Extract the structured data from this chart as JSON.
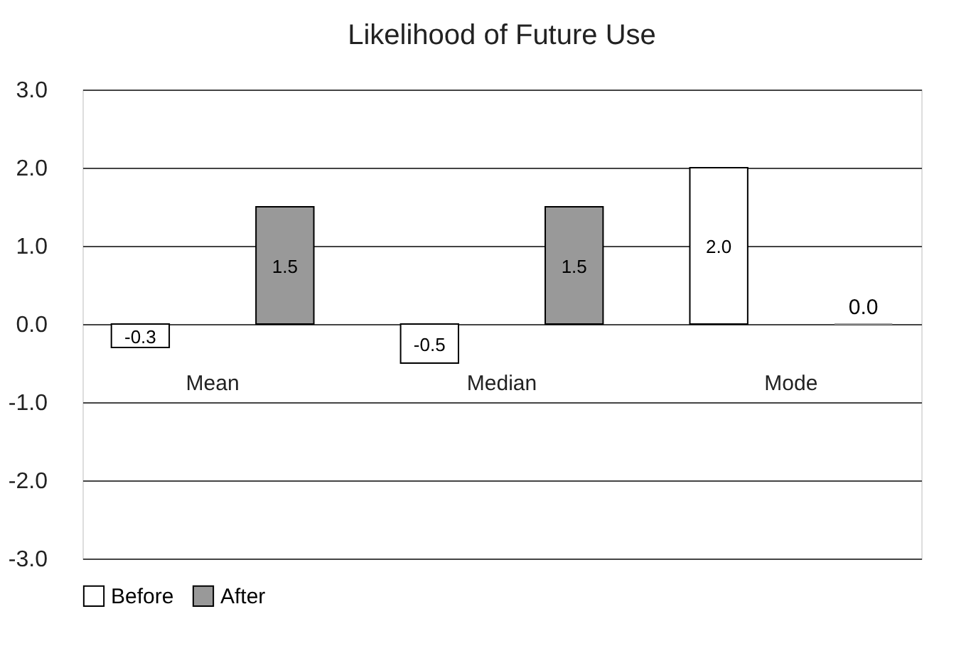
{
  "chart_data": {
    "type": "bar",
    "title": "Likelihood of Future Use",
    "categories": [
      "Mean",
      "Median",
      "Mode"
    ],
    "series": [
      {
        "name": "Before",
        "color": "#ffffff",
        "values": [
          -0.3,
          -0.5,
          2.0
        ],
        "value_labels": [
          "-0.3",
          "-0.5",
          "2.0"
        ]
      },
      {
        "name": "After",
        "color": "#999999",
        "values": [
          1.5,
          1.5,
          0.0
        ],
        "value_labels": [
          "1.5",
          "1.5",
          "0.0"
        ]
      }
    ],
    "ylim": [
      -3,
      3
    ],
    "yticks": [
      {
        "value": 3,
        "label": "3.0"
      },
      {
        "value": 2,
        "label": "2.0"
      },
      {
        "value": 1,
        "label": "1.0"
      },
      {
        "value": 0,
        "label": "0.0"
      },
      {
        "value": -1,
        "label": "-1.0"
      },
      {
        "value": -2,
        "label": "-2.0"
      },
      {
        "value": -3,
        "label": "-3.0"
      }
    ],
    "grid": "y",
    "legend": "bottom",
    "data_labels": true
  }
}
